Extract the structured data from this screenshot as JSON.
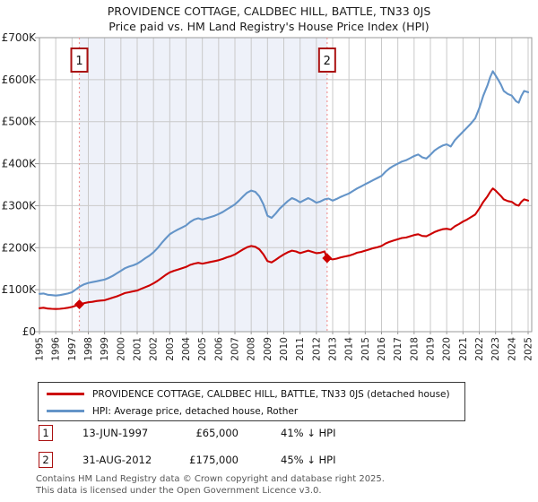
{
  "title": {
    "line1": "PROVIDENCE COTTAGE, CALDBEC HILL, BATTLE, TN33 0JS",
    "line2": "Price paid vs. HM Land Registry's House Price Index (HPI)"
  },
  "colors": {
    "property_line": "#cc0000",
    "hpi_line": "#6494c8",
    "grid": "#c9c9c9",
    "plot_border": "#9a9a9a",
    "shade": "#eef1f9",
    "dashed_marker_line": "#f09898",
    "marker_box_border": "#aa1111",
    "axis_text": "#222222",
    "footer_text": "#575757"
  },
  "chart_data": {
    "type": "line",
    "title": "PROVIDENCE COTTAGE, CALDBEC HILL, BATTLE, TN33 0JS",
    "subtitle": "Price paid vs. HM Land Registry's House Price Index (HPI)",
    "xlabel": "",
    "ylabel": "",
    "grid": true,
    "legend_position": "below",
    "x_range": [
      1995,
      2025
    ],
    "xticks": [
      1995,
      1996,
      1997,
      1998,
      1999,
      2000,
      2001,
      2002,
      2003,
      2004,
      2005,
      2006,
      2007,
      2008,
      2009,
      2010,
      2011,
      2012,
      2013,
      2014,
      2015,
      2016,
      2017,
      2018,
      2019,
      2020,
      2021,
      2022,
      2023,
      2024,
      2025
    ],
    "ylim_k": [
      0,
      700
    ],
    "yticks_k": [
      0,
      100,
      200,
      300,
      400,
      500,
      600,
      700
    ],
    "ytick_labels": [
      "£0",
      "£100K",
      "£200K",
      "£300K",
      "£400K",
      "£500K",
      "£600K",
      "£700K"
    ],
    "shaded_region_years": [
      1997.45,
      2012.66
    ],
    "series": [
      {
        "name": "PROVIDENCE COTTAGE, CALDBEC HILL, BATTLE, TN33 0JS (detached house)",
        "color": "#cc0000",
        "points_year_gbpk": [
          [
            1995,
            56
          ],
          [
            1995.25,
            57
          ],
          [
            1995.5,
            55
          ],
          [
            1995.75,
            54.5
          ],
          [
            1996,
            54
          ],
          [
            1996.25,
            54.5
          ],
          [
            1996.5,
            55.5
          ],
          [
            1996.75,
            57
          ],
          [
            1997,
            59
          ],
          [
            1997.25,
            62
          ],
          [
            1997.45,
            65
          ],
          [
            1997.75,
            68
          ],
          [
            1998,
            70
          ],
          [
            1998.25,
            71
          ],
          [
            1998.5,
            73
          ],
          [
            1998.75,
            74
          ],
          [
            1999,
            75
          ],
          [
            1999.25,
            78
          ],
          [
            1999.5,
            81
          ],
          [
            1999.75,
            84
          ],
          [
            2000,
            88
          ],
          [
            2000.25,
            92
          ],
          [
            2000.5,
            94
          ],
          [
            2000.75,
            96
          ],
          [
            2001,
            98
          ],
          [
            2001.25,
            102
          ],
          [
            2001.5,
            106
          ],
          [
            2001.75,
            110
          ],
          [
            2002,
            115
          ],
          [
            2002.25,
            121
          ],
          [
            2002.5,
            128
          ],
          [
            2002.75,
            135
          ],
          [
            2003,
            141
          ],
          [
            2003.25,
            145
          ],
          [
            2003.5,
            148
          ],
          [
            2003.75,
            151
          ],
          [
            2004,
            154
          ],
          [
            2004.25,
            159
          ],
          [
            2004.5,
            162
          ],
          [
            2004.75,
            164
          ],
          [
            2005,
            162
          ],
          [
            2005.25,
            164
          ],
          [
            2005.5,
            166
          ],
          [
            2005.75,
            168
          ],
          [
            2006,
            170
          ],
          [
            2006.25,
            173
          ],
          [
            2006.5,
            177
          ],
          [
            2006.75,
            180
          ],
          [
            2007,
            184
          ],
          [
            2007.25,
            190
          ],
          [
            2007.5,
            196
          ],
          [
            2007.75,
            201
          ],
          [
            2008,
            204
          ],
          [
            2008.25,
            202
          ],
          [
            2008.5,
            196
          ],
          [
            2008.75,
            184
          ],
          [
            2009,
            168
          ],
          [
            2009.25,
            165
          ],
          [
            2009.5,
            171
          ],
          [
            2009.75,
            178
          ],
          [
            2010,
            184
          ],
          [
            2010.25,
            189
          ],
          [
            2010.5,
            193
          ],
          [
            2010.75,
            191
          ],
          [
            2011,
            187
          ],
          [
            2011.25,
            190
          ],
          [
            2011.5,
            193
          ],
          [
            2011.75,
            190
          ],
          [
            2012,
            187
          ],
          [
            2012.25,
            188
          ],
          [
            2012.5,
            191
          ],
          [
            2012.66,
            175
          ],
          [
            2012.75,
            174
          ],
          [
            2013,
            172
          ],
          [
            2013.25,
            174
          ],
          [
            2013.5,
            177
          ],
          [
            2013.75,
            179
          ],
          [
            2014,
            181
          ],
          [
            2014.25,
            184
          ],
          [
            2014.5,
            188
          ],
          [
            2014.75,
            190
          ],
          [
            2015,
            193
          ],
          [
            2015.25,
            196
          ],
          [
            2015.5,
            199
          ],
          [
            2015.75,
            201
          ],
          [
            2016,
            204
          ],
          [
            2016.25,
            210
          ],
          [
            2016.5,
            214
          ],
          [
            2016.75,
            217
          ],
          [
            2017,
            220
          ],
          [
            2017.25,
            223
          ],
          [
            2017.5,
            224
          ],
          [
            2017.75,
            227
          ],
          [
            2018,
            230
          ],
          [
            2018.25,
            232
          ],
          [
            2018.5,
            228
          ],
          [
            2018.75,
            227
          ],
          [
            2019,
            232
          ],
          [
            2019.25,
            237
          ],
          [
            2019.5,
            241
          ],
          [
            2019.75,
            244
          ],
          [
            2020,
            245
          ],
          [
            2020.25,
            243
          ],
          [
            2020.5,
            251
          ],
          [
            2020.75,
            256
          ],
          [
            2021,
            262
          ],
          [
            2021.25,
            267
          ],
          [
            2021.5,
            273
          ],
          [
            2021.75,
            279
          ],
          [
            2022,
            293
          ],
          [
            2022.25,
            309
          ],
          [
            2022.5,
            322
          ],
          [
            2022.67,
            333
          ],
          [
            2022.83,
            341
          ],
          [
            2023,
            336
          ],
          [
            2023.17,
            329
          ],
          [
            2023.33,
            323
          ],
          [
            2023.5,
            315
          ],
          [
            2023.75,
            311
          ],
          [
            2024,
            309
          ],
          [
            2024.25,
            302
          ],
          [
            2024.42,
            300
          ],
          [
            2024.58,
            309
          ],
          [
            2024.75,
            315
          ],
          [
            2025,
            312
          ]
        ]
      },
      {
        "name": "HPI: Average price, detached house, Rother",
        "color": "#6494c8",
        "points_year_gbpk": [
          [
            1995,
            90
          ],
          [
            1995.25,
            91
          ],
          [
            1995.5,
            88
          ],
          [
            1995.75,
            87
          ],
          [
            1996,
            86
          ],
          [
            1996.25,
            87
          ],
          [
            1996.5,
            89
          ],
          [
            1996.75,
            91
          ],
          [
            1997,
            94
          ],
          [
            1997.25,
            101
          ],
          [
            1997.5,
            108
          ],
          [
            1997.75,
            113
          ],
          [
            1998,
            116
          ],
          [
            1998.25,
            118
          ],
          [
            1998.5,
            120
          ],
          [
            1998.75,
            122
          ],
          [
            1999,
            124
          ],
          [
            1999.25,
            128
          ],
          [
            1999.5,
            133
          ],
          [
            1999.75,
            139
          ],
          [
            2000,
            145
          ],
          [
            2000.25,
            151
          ],
          [
            2000.5,
            155
          ],
          [
            2000.75,
            158
          ],
          [
            2001,
            162
          ],
          [
            2001.25,
            168
          ],
          [
            2001.5,
            175
          ],
          [
            2001.75,
            181
          ],
          [
            2002,
            189
          ],
          [
            2002.25,
            199
          ],
          [
            2002.5,
            211
          ],
          [
            2002.75,
            222
          ],
          [
            2003,
            232
          ],
          [
            2003.25,
            238
          ],
          [
            2003.5,
            243
          ],
          [
            2003.75,
            248
          ],
          [
            2004,
            253
          ],
          [
            2004.25,
            261
          ],
          [
            2004.5,
            267
          ],
          [
            2004.75,
            270
          ],
          [
            2005,
            267
          ],
          [
            2005.25,
            270
          ],
          [
            2005.5,
            273
          ],
          [
            2005.75,
            276
          ],
          [
            2006,
            280
          ],
          [
            2006.25,
            285
          ],
          [
            2006.5,
            291
          ],
          [
            2006.75,
            297
          ],
          [
            2007,
            303
          ],
          [
            2007.25,
            312
          ],
          [
            2007.5,
            322
          ],
          [
            2007.75,
            331
          ],
          [
            2008,
            336
          ],
          [
            2008.25,
            333
          ],
          [
            2008.5,
            322
          ],
          [
            2008.75,
            303
          ],
          [
            2009,
            276
          ],
          [
            2009.25,
            271
          ],
          [
            2009.5,
            281
          ],
          [
            2009.75,
            293
          ],
          [
            2010,
            302
          ],
          [
            2010.25,
            311
          ],
          [
            2010.5,
            318
          ],
          [
            2010.75,
            314
          ],
          [
            2011,
            308
          ],
          [
            2011.25,
            313
          ],
          [
            2011.5,
            318
          ],
          [
            2011.75,
            313
          ],
          [
            2012,
            307
          ],
          [
            2012.25,
            310
          ],
          [
            2012.5,
            315
          ],
          [
            2012.75,
            317
          ],
          [
            2013,
            312
          ],
          [
            2013.25,
            316
          ],
          [
            2013.5,
            321
          ],
          [
            2013.75,
            325
          ],
          [
            2014,
            329
          ],
          [
            2014.25,
            335
          ],
          [
            2014.5,
            341
          ],
          [
            2014.75,
            346
          ],
          [
            2015,
            351
          ],
          [
            2015.25,
            356
          ],
          [
            2015.5,
            361
          ],
          [
            2015.75,
            366
          ],
          [
            2016,
            371
          ],
          [
            2016.25,
            381
          ],
          [
            2016.5,
            389
          ],
          [
            2016.75,
            395
          ],
          [
            2017,
            400
          ],
          [
            2017.25,
            405
          ],
          [
            2017.5,
            408
          ],
          [
            2017.75,
            413
          ],
          [
            2018,
            418
          ],
          [
            2018.25,
            422
          ],
          [
            2018.5,
            415
          ],
          [
            2018.75,
            412
          ],
          [
            2019,
            421
          ],
          [
            2019.25,
            431
          ],
          [
            2019.5,
            438
          ],
          [
            2019.75,
            443
          ],
          [
            2020,
            446
          ],
          [
            2020.25,
            441
          ],
          [
            2020.5,
            456
          ],
          [
            2020.75,
            466
          ],
          [
            2021,
            476
          ],
          [
            2021.25,
            486
          ],
          [
            2021.5,
            496
          ],
          [
            2021.75,
            508
          ],
          [
            2022,
            532
          ],
          [
            2022.25,
            562
          ],
          [
            2022.5,
            586
          ],
          [
            2022.67,
            606
          ],
          [
            2022.83,
            620
          ],
          [
            2023,
            610
          ],
          [
            2023.17,
            599
          ],
          [
            2023.33,
            588
          ],
          [
            2023.5,
            573
          ],
          [
            2023.75,
            566
          ],
          [
            2024,
            562
          ],
          [
            2024.25,
            549
          ],
          [
            2024.42,
            545
          ],
          [
            2024.58,
            561
          ],
          [
            2024.75,
            573
          ],
          [
            2025,
            570
          ]
        ]
      }
    ],
    "sale_markers": [
      {
        "label": "1",
        "year": 1997.45,
        "price_gbpk": 65,
        "date": "13-JUN-1997"
      },
      {
        "label": "2",
        "year": 2012.66,
        "price_gbpk": 175,
        "date": "31-AUG-2012"
      }
    ]
  },
  "legend": {
    "items": [
      {
        "label": "PROVIDENCE COTTAGE, CALDBEC HILL, BATTLE, TN33 0JS (detached house)"
      },
      {
        "label": "HPI: Average price, detached house, Rother"
      }
    ]
  },
  "annotations": [
    {
      "num": "1",
      "date": "13-JUN-1997",
      "price": "£65,000",
      "hpi": "41% ↓ HPI"
    },
    {
      "num": "2",
      "date": "31-AUG-2012",
      "price": "£175,000",
      "hpi": "45% ↓ HPI"
    }
  ],
  "footer": {
    "line1": "Contains HM Land Registry data © Crown copyright and database right 2025.",
    "line2": "This data is licensed under the Open Government Licence v3.0."
  }
}
